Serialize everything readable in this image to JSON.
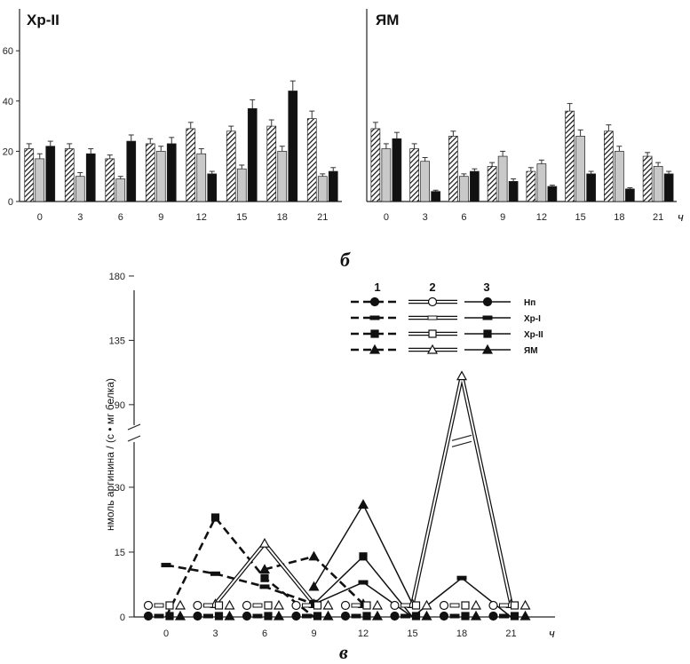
{
  "panel_label_b": "б",
  "panel_label_c": "в",
  "chart_data": [
    {
      "type": "bar",
      "title": "Хр-II",
      "categories": [
        "0",
        "3",
        "6",
        "9",
        "12",
        "15",
        "18",
        "21"
      ],
      "xunit": "",
      "yticks": [
        "0",
        "20",
        "40",
        "60"
      ],
      "ylim": [
        0,
        70
      ],
      "series": [
        {
          "pattern": "hatched",
          "values": [
            21,
            21,
            17,
            23,
            29,
            28,
            30,
            33
          ],
          "errors": [
            2,
            2,
            1.5,
            2,
            2.5,
            2,
            2.5,
            3
          ]
        },
        {
          "pattern": "gray",
          "values": [
            17,
            10,
            9,
            20,
            19,
            13,
            20,
            10
          ],
          "errors": [
            2,
            1.5,
            1,
            2,
            2,
            1.5,
            2,
            1
          ]
        },
        {
          "pattern": "black",
          "values": [
            22,
            19,
            24,
            23,
            11,
            37,
            44,
            12
          ],
          "errors": [
            2,
            2,
            2.5,
            2.5,
            1,
            3.5,
            4,
            1.5
          ]
        }
      ]
    },
    {
      "type": "bar",
      "title": "ЯМ",
      "categories": [
        "0",
        "3",
        "6",
        "9",
        "12",
        "15",
        "18",
        "21"
      ],
      "xunit": "ч",
      "ylim": [
        0,
        70
      ],
      "series": [
        {
          "pattern": "hatched",
          "values": [
            29,
            21,
            26,
            14,
            12,
            36,
            28,
            18
          ],
          "errors": [
            2.5,
            2,
            2,
            1.5,
            1.5,
            3,
            2.5,
            1.5
          ]
        },
        {
          "pattern": "gray",
          "values": [
            21,
            16,
            10,
            18,
            15,
            26,
            20,
            14
          ],
          "errors": [
            2,
            1.5,
            1,
            2,
            1.5,
            2.5,
            2,
            1.5
          ]
        },
        {
          "pattern": "black",
          "values": [
            25,
            4,
            12,
            8,
            6,
            11,
            5,
            11
          ],
          "errors": [
            2.5,
            0.5,
            1,
            1,
            0.5,
            1,
            0.5,
            1
          ]
        }
      ]
    },
    {
      "type": "line",
      "ylabel": "нмоль аргинина / (с • мг белка)",
      "xunit": "ч",
      "x": [
        "0",
        "3",
        "6",
        "9",
        "12",
        "15",
        "18",
        "21"
      ],
      "yticks": [
        "0",
        "15",
        "30",
        "90",
        "135",
        "180"
      ],
      "axis_break": [
        40,
        75
      ],
      "legend": {
        "columns": [
          "1",
          "2",
          "3"
        ],
        "rows": [
          "Нп",
          "Хр-I",
          "Хр-II",
          "ЯМ"
        ],
        "placement": "top-right"
      },
      "series": [
        {
          "condition": "Хр-II",
          "group": "1",
          "x": [
            0,
            3,
            6,
            9
          ],
          "values": [
            0,
            23,
            9,
            0
          ]
        },
        {
          "condition": "Хр-I",
          "group": "1",
          "x": [
            0,
            3,
            6,
            9
          ],
          "values": [
            12,
            10,
            7,
            3
          ]
        },
        {
          "condition": "ЯМ",
          "group": "1",
          "x": [
            6,
            9,
            12
          ],
          "values": [
            11,
            14,
            3
          ]
        },
        {
          "condition": "ЯМ",
          "group": "2",
          "x": [
            3,
            6,
            9
          ],
          "values": [
            3,
            17,
            3
          ]
        },
        {
          "condition": "ЯМ",
          "group": "3",
          "x": [
            9,
            12,
            15
          ],
          "values": [
            7,
            26,
            3
          ]
        },
        {
          "condition": "Хр-II",
          "group": "3",
          "x": [
            9,
            12,
            15
          ],
          "values": [
            3,
            14,
            0
          ]
        },
        {
          "condition": "Хр-I",
          "group": "3",
          "x": [
            9,
            12,
            15
          ],
          "values": [
            3,
            8,
            0
          ]
        },
        {
          "condition": "ЯМ",
          "group": "2",
          "x": [
            15,
            18,
            21
          ],
          "values": [
            3,
            110,
            3
          ]
        },
        {
          "condition": "Хр-I",
          "group": "3",
          "x": [
            15,
            18,
            21
          ],
          "values": [
            0,
            9,
            0
          ]
        }
      ]
    }
  ]
}
